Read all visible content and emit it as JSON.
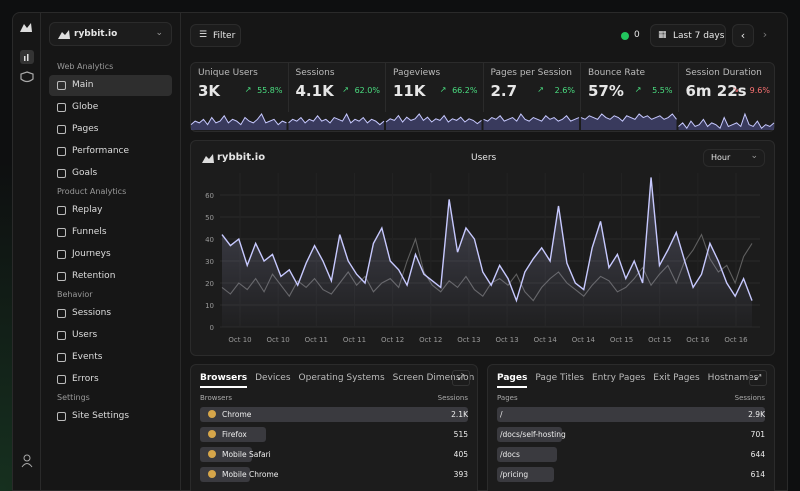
{
  "sidebar": {
    "site": "rybbit.io",
    "sections": [
      {
        "title": "Web Analytics",
        "items": [
          "Main",
          "Globe",
          "Pages",
          "Performance",
          "Goals"
        ]
      },
      {
        "title": "Product Analytics",
        "items": [
          "Replay",
          "Funnels",
          "Journeys",
          "Retention"
        ]
      },
      {
        "title": "Behavior",
        "items": [
          "Sessions",
          "Users",
          "Events",
          "Errors"
        ]
      },
      {
        "title": "Settings",
        "items": [
          "Site Settings"
        ]
      }
    ]
  },
  "toolbar": {
    "filter": "Filter",
    "online": "0",
    "range": "Last 7 days"
  },
  "stats": [
    {
      "label": "Unique Users",
      "value": "3K",
      "change": "55.8%",
      "trend": "up",
      "spark": [
        3,
        5,
        4,
        6,
        3,
        7,
        4,
        5,
        8,
        4,
        6,
        5,
        3,
        7,
        5,
        4,
        6,
        9,
        4,
        5,
        6,
        3,
        5,
        4
      ]
    },
    {
      "label": "Sessions",
      "value": "4.1K",
      "change": "62.0%",
      "trend": "up",
      "spark": [
        4,
        6,
        5,
        7,
        4,
        6,
        5,
        8,
        5,
        6,
        4,
        7,
        6,
        5,
        9,
        4,
        6,
        5,
        7,
        4,
        6,
        5,
        3,
        5
      ]
    },
    {
      "label": "Pageviews",
      "value": "11K",
      "change": "66.2%",
      "trend": "up",
      "spark": [
        5,
        7,
        6,
        9,
        5,
        8,
        6,
        7,
        10,
        6,
        8,
        5,
        7,
        6,
        9,
        5,
        7,
        6,
        8,
        5,
        7,
        6,
        4,
        6
      ]
    },
    {
      "label": "Pages per Session",
      "value": "2.7",
      "change": "2.6%",
      "trend": "up",
      "spark": [
        6,
        5,
        7,
        6,
        8,
        5,
        6,
        7,
        5,
        9,
        6,
        5,
        7,
        6,
        5,
        8,
        6,
        7,
        5,
        6,
        8,
        5,
        6,
        7
      ]
    },
    {
      "label": "Bounce Rate",
      "value": "57%",
      "change": "5.5%",
      "trend": "up",
      "spark": [
        7,
        6,
        8,
        7,
        6,
        9,
        7,
        6,
        8,
        7,
        5,
        8,
        7,
        6,
        9,
        7,
        8,
        6,
        7,
        8,
        6,
        7,
        9,
        6
      ]
    },
    {
      "label": "Session Duration",
      "value": "6m 22s",
      "change": "9.6%",
      "trend": "down",
      "spark": [
        2,
        4,
        1,
        5,
        2,
        3,
        6,
        2,
        4,
        3,
        1,
        7,
        2,
        3,
        4,
        2,
        9,
        3,
        2,
        5,
        1,
        3,
        2,
        4
      ]
    }
  ],
  "chart": {
    "site": "rybbit.io",
    "title": "Users",
    "bucket": "Hour",
    "ylim": [
      0,
      70
    ],
    "yticks": [
      0,
      10,
      20,
      30,
      40,
      50,
      60
    ],
    "x_labels": [
      "Oct 10",
      "Oct 10",
      "Oct 11",
      "Oct 11",
      "Oct 12",
      "Oct 12",
      "Oct 13",
      "Oct 13",
      "Oct 14",
      "Oct 14",
      "Oct 15",
      "Oct 15",
      "Oct 16",
      "Oct 16"
    ],
    "series": [
      {
        "color": "#c7c9ff",
        "values": [
          42,
          37,
          40,
          28,
          38,
          30,
          33,
          23,
          26,
          19,
          29,
          37,
          30,
          21,
          42,
          30,
          24,
          20,
          38,
          45,
          30,
          26,
          19,
          33,
          24,
          21,
          18,
          58,
          34,
          45,
          40,
          25,
          19,
          28,
          22,
          12,
          25,
          31,
          36,
          30,
          55,
          29,
          20,
          17,
          36,
          48,
          27,
          33,
          22,
          30,
          20,
          68,
          28,
          35,
          43,
          30,
          18,
          24,
          38,
          30,
          20,
          14,
          22,
          12
        ]
      },
      {
        "color": "#5f5f5f",
        "values": [
          18,
          15,
          20,
          17,
          22,
          16,
          24,
          19,
          14,
          21,
          18,
          22,
          17,
          15,
          20,
          25,
          19,
          23,
          16,
          20,
          22,
          18,
          30,
          40,
          25,
          19,
          16,
          21,
          18,
          23,
          17,
          14,
          20,
          22,
          19,
          24,
          16,
          12,
          18,
          22,
          25,
          20,
          17,
          14,
          19,
          23,
          21,
          16,
          18,
          22,
          27,
          19,
          24,
          28,
          20,
          30,
          35,
          42,
          31,
          25,
          28,
          20,
          32,
          38
        ]
      }
    ]
  },
  "tables": [
    {
      "tabs": [
        "Browsers",
        "Devices",
        "Operating Systems",
        "Screen Dimension"
      ],
      "header": [
        "Browsers",
        "Sessions"
      ],
      "rows": [
        {
          "name": "Chrome",
          "value": 2100,
          "label": "2.1K"
        },
        {
          "name": "Firefox",
          "value": 515,
          "label": "515"
        },
        {
          "name": "Mobile Safari",
          "value": 405,
          "label": "405"
        },
        {
          "name": "Mobile Chrome",
          "value": 393,
          "label": "393"
        }
      ]
    },
    {
      "tabs": [
        "Pages",
        "Page Titles",
        "Entry Pages",
        "Exit Pages",
        "Hostnames"
      ],
      "header": [
        "Pages",
        "Sessions"
      ],
      "rows": [
        {
          "name": "/",
          "value": 2900,
          "label": "2.9K"
        },
        {
          "name": "/docs/self-hosting",
          "value": 701,
          "label": "701"
        },
        {
          "name": "/docs",
          "value": 644,
          "label": "644"
        },
        {
          "name": "/pricing",
          "value": 614,
          "label": "614"
        }
      ]
    }
  ]
}
